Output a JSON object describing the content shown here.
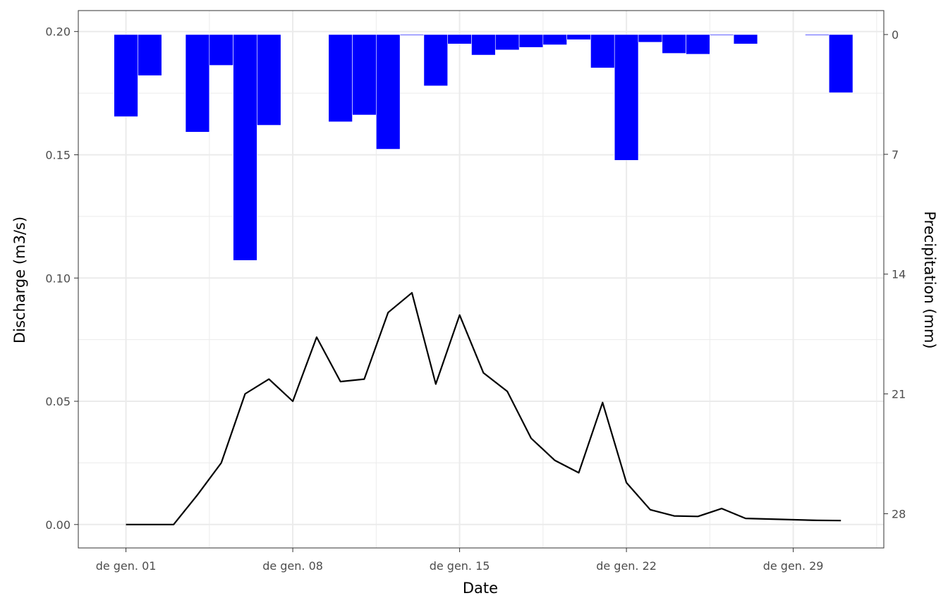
{
  "chart_data": {
    "type": "bar+line",
    "xlabel": "Date",
    "ylabel_left": "Discharge (m3/s)",
    "ylabel_right": "Precipitation (mm)",
    "x_ticks": [
      {
        "day": 1,
        "label": "de gen. 01"
      },
      {
        "day": 8,
        "label": "de gen. 08"
      },
      {
        "day": 15,
        "label": "de gen. 15"
      },
      {
        "day": 22,
        "label": "de gen. 22"
      },
      {
        "day": 29,
        "label": "de gen. 29"
      }
    ],
    "y_left_ticks": [
      "0.00",
      "0.05",
      "0.10",
      "0.15",
      "0.20"
    ],
    "y_left_tick_values": [
      0,
      0.05,
      0.1,
      0.15,
      0.2
    ],
    "y_right_ticks": [
      "0",
      "7",
      "14",
      "28"
    ],
    "y_right_tick_values": [
      0,
      7,
      14,
      21,
      28
    ],
    "y_right_tick_labels_all": [
      "0",
      "7",
      "14",
      "21",
      "28"
    ],
    "xlim": [
      -1,
      32.8
    ],
    "ylim_left": [
      -0.0095,
      0.2085
    ],
    "ylim_right_top_to_bottom": [
      -1.4,
      30
    ],
    "grid": true,
    "precipitation": {
      "color": "#0000ff",
      "days": [
        1,
        2,
        4,
        5,
        6,
        7,
        10,
        11,
        12,
        13,
        14,
        15,
        16,
        17,
        18,
        19,
        20,
        21,
        22,
        23,
        24,
        25,
        26,
        27,
        30,
        31
      ],
      "values_mm": [
        4.8,
        2.4,
        5.7,
        1.8,
        13.2,
        5.3,
        5.1,
        4.7,
        6.7,
        0.05,
        3.0,
        0.55,
        1.2,
        0.9,
        0.75,
        0.6,
        0.3,
        1.95,
        7.35,
        0.45,
        1.1,
        1.15,
        0.05,
        0.55,
        0.05,
        3.4
      ]
    },
    "discharge": {
      "color": "#000000",
      "days": [
        1,
        2,
        3,
        4,
        5,
        6,
        7,
        8,
        9,
        10,
        11,
        12,
        13,
        14,
        15,
        16,
        17,
        18,
        19,
        20,
        21,
        22,
        23,
        24,
        25,
        26,
        27,
        30,
        31
      ],
      "values_m3s": [
        0.0,
        0.0,
        0.0,
        0.012,
        0.025,
        0.053,
        0.059,
        0.05,
        0.076,
        0.058,
        0.059,
        0.086,
        0.094,
        0.057,
        0.085,
        0.0615,
        0.054,
        0.035,
        0.026,
        0.021,
        0.0495,
        0.017,
        0.006,
        0.0035,
        0.0033,
        0.0065,
        0.0025,
        0.0017,
        0.0016
      ]
    }
  }
}
